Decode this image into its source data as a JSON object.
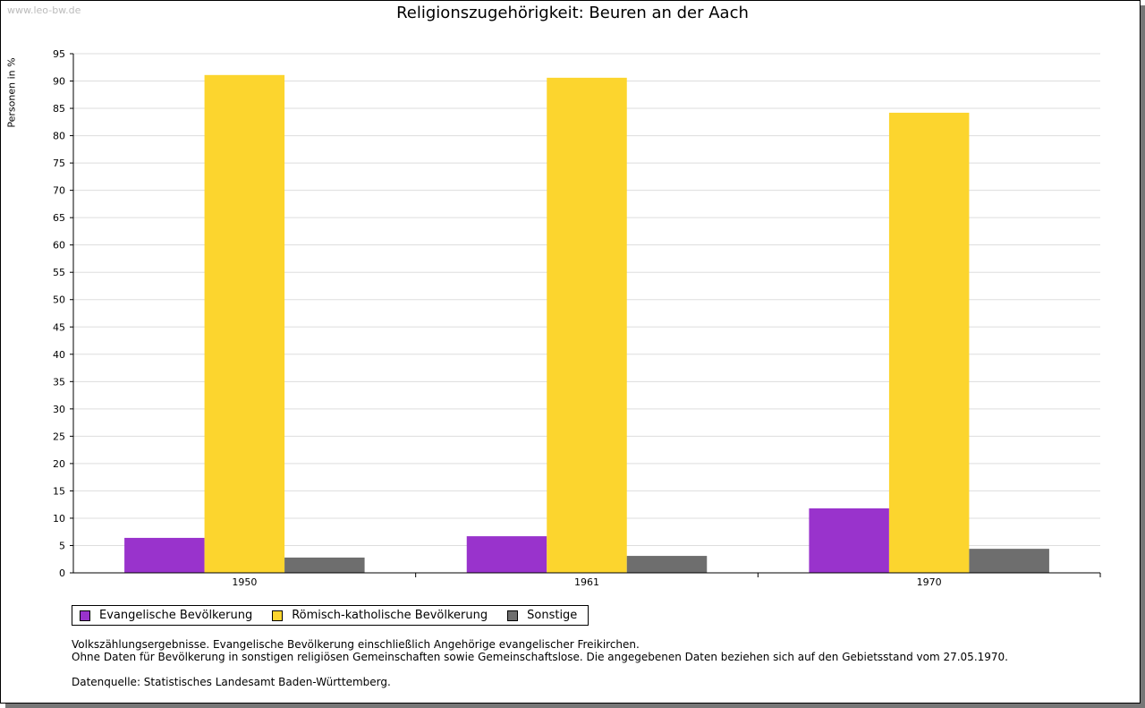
{
  "watermark": "www.leo-bw.de",
  "chart_data": {
    "type": "bar",
    "title": "Religionszugehörigkeit: Beuren an der Aach",
    "ylabel": "Personen in %",
    "xlabel": "",
    "ylim": [
      0,
      95
    ],
    "ytick_step": 5,
    "grid": true,
    "legend_placement": "bottom-left",
    "categories": [
      "1950",
      "1961",
      "1970"
    ],
    "series": [
      {
        "name": "Evangelische Bevölkerung",
        "color": "#9933cc",
        "values": [
          6.4,
          6.7,
          11.8
        ]
      },
      {
        "name": "Römisch-katholische Bevölkerung",
        "color": "#fcd52e",
        "values": [
          91.1,
          90.6,
          84.2
        ]
      },
      {
        "name": "Sonstige",
        "color": "#6e6e6e",
        "values": [
          2.8,
          3.1,
          4.4
        ]
      }
    ]
  },
  "notes": [
    "Volkszählungsergebnisse. Evangelische Bevölkerung einschließlich Angehörige evangelischer Freikirchen.",
    "Ohne Daten für Bevölkerung in sonstigen religiösen Gemeinschaften sowie Gemeinschaftslose. Die angegebenen Daten beziehen sich auf den Gebietsstand vom 27.05.1970.",
    "",
    "Datenquelle: Statistisches Landesamt Baden-Württemberg."
  ]
}
